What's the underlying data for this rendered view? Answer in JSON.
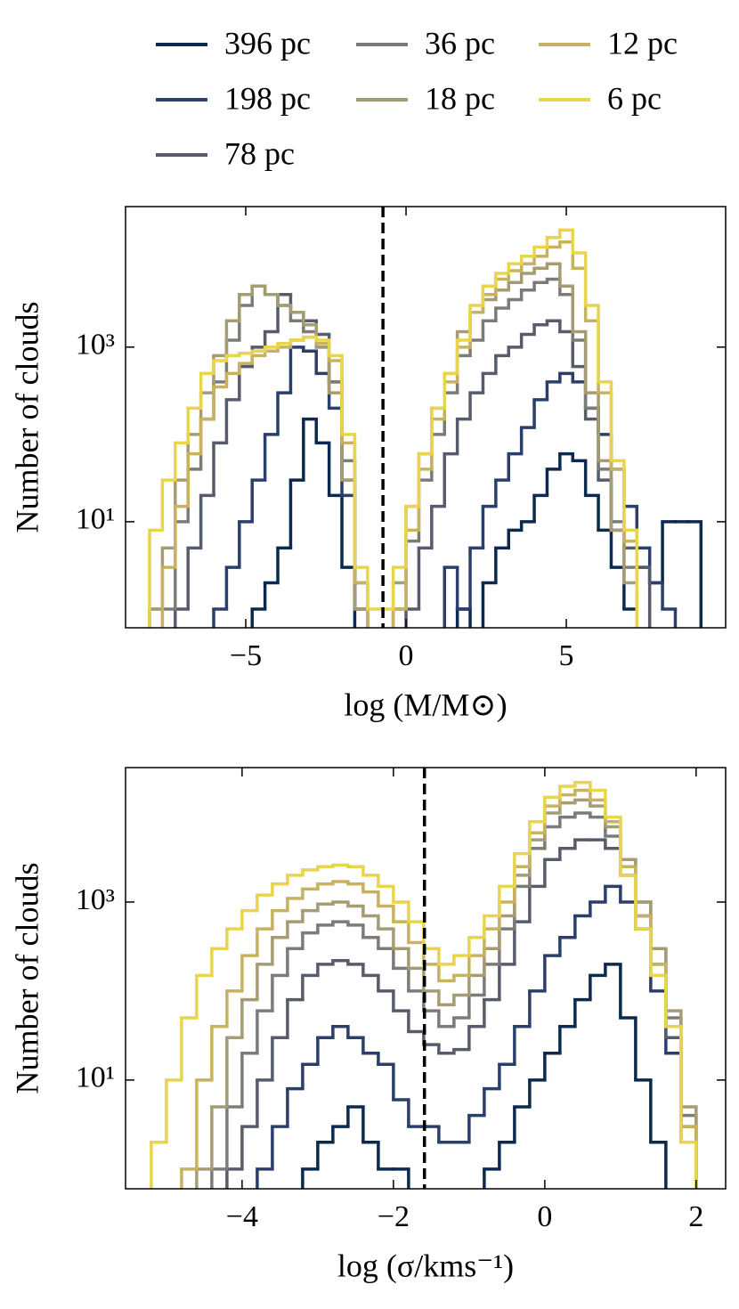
{
  "chart_data": [
    {
      "type": "histogram",
      "xlabel": "log (M/M⊙)",
      "ylabel": "Number of clouds",
      "log_y": true,
      "xlim": [
        -8.75,
        9.97
      ],
      "ylim": [
        0.61,
        40700
      ],
      "xticks": [
        {
          "value": -5,
          "label": "−5"
        },
        0,
        5
      ],
      "yticks": [
        {
          "value": 10,
          "label": "10¹"
        },
        {
          "value": 1000,
          "label": "10³"
        }
      ],
      "vline": -0.72,
      "bins": [
        -8,
        -7.6,
        -7.2,
        -6.8,
        -6.4,
        -6,
        -5.6,
        -5.2,
        -4.8,
        -4.4,
        -4,
        -3.6,
        -3.2,
        -2.8,
        -2.4,
        -2,
        -1.6,
        -1.2,
        -0.8,
        -0.4,
        0,
        0.4,
        0.8,
        1.2,
        1.6,
        2,
        2.4,
        2.8,
        3.2,
        3.6,
        4,
        4.4,
        4.8,
        5.2,
        5.6,
        6,
        6.4,
        6.8,
        7.2,
        7.6,
        8,
        8.4,
        8.8,
        9.2
      ],
      "series": [
        {
          "name": "396 pc",
          "color": "#0c2a50",
          "values": [
            0,
            0,
            0,
            0,
            0,
            0,
            0,
            0,
            1,
            2,
            5,
            30,
            150,
            80,
            20,
            3,
            0,
            0,
            0,
            0,
            0,
            0,
            0,
            0,
            1,
            0,
            2,
            5,
            8,
            10,
            20,
            40,
            60,
            50,
            20,
            8,
            3,
            1,
            3,
            2,
            10,
            10,
            10
          ]
        },
        {
          "name": "198 pc",
          "color": "#2a3f6c",
          "values": [
            0,
            0,
            0,
            0,
            0,
            1,
            3,
            10,
            30,
            100,
            300,
            1000,
            900,
            500,
            200,
            20,
            1,
            0,
            0,
            0,
            0,
            0,
            0,
            3,
            1,
            5,
            15,
            30,
            60,
            120,
            250,
            400,
            500,
            400,
            200,
            100,
            40,
            15,
            5,
            2,
            1,
            0,
            0
          ]
        },
        {
          "name": "78 pc",
          "color": "#575c6d",
          "values": [
            0,
            0,
            1,
            5,
            20,
            80,
            250,
            600,
            1000,
            1500,
            4000,
            2500,
            2000,
            1400,
            400,
            30,
            1,
            0,
            0,
            0,
            1,
            5,
            15,
            60,
            150,
            300,
            500,
            800,
            1000,
            1400,
            1800,
            2000,
            1500,
            600,
            150,
            30,
            8,
            5,
            3,
            0,
            0,
            0,
            0
          ]
        },
        {
          "name": "36 pc",
          "color": "#7c7b78",
          "values": [
            1,
            1,
            10,
            40,
            150,
            400,
            1200,
            3000,
            5000,
            4000,
            3000,
            2000,
            1500,
            1000,
            400,
            50,
            2,
            0,
            0,
            1,
            6,
            30,
            100,
            300,
            800,
            1200,
            2000,
            2800,
            3500,
            4500,
            5500,
            6000,
            4000,
            1200,
            200,
            40,
            10,
            3,
            0,
            0,
            0,
            0,
            0
          ]
        },
        {
          "name": "18 pc",
          "color": "#a59c74",
          "values": [
            1,
            5,
            30,
            100,
            300,
            800,
            2000,
            4000,
            5000,
            4000,
            3000,
            2500,
            1800,
            1000,
            300,
            30,
            1,
            0,
            0,
            2,
            15,
            60,
            200,
            500,
            1500,
            2500,
            3500,
            4500,
            5500,
            7000,
            8000,
            9000,
            5000,
            1500,
            300,
            50,
            8,
            2,
            0,
            0,
            0,
            0,
            0
          ]
        },
        {
          "name": "12 pc",
          "color": "#c9b25f",
          "values": [
            0,
            3,
            15,
            60,
            150,
            350,
            500,
            650,
            800,
            900,
            1000,
            1200,
            1300,
            1100,
            700,
            80,
            2,
            0,
            0,
            1,
            8,
            40,
            150,
            400,
            1000,
            2500,
            4000,
            6000,
            7500,
            9000,
            11000,
            14000,
            16000,
            8000,
            2000,
            300,
            40,
            6,
            0,
            0,
            0,
            0,
            0
          ]
        },
        {
          "name": "6 pc",
          "color": "#e8d44d",
          "values": [
            8,
            30,
            80,
            200,
            500,
            700,
            800,
            850,
            900,
            1000,
            1100,
            1200,
            1300,
            1200,
            800,
            100,
            3,
            1,
            1,
            3,
            15,
            60,
            200,
            500,
            1200,
            3000,
            5000,
            7000,
            9000,
            11000,
            14000,
            18000,
            22000,
            12000,
            3000,
            400,
            50,
            8,
            0,
            0,
            0,
            0,
            0
          ]
        }
      ]
    },
    {
      "type": "histogram",
      "xlabel": "log (σ/kms⁻¹)",
      "ylabel": "Number of clouds",
      "log_y": true,
      "xlim": [
        -5.54,
        2.39
      ],
      "ylim": [
        0.6,
        32400
      ],
      "xticks": [
        {
          "value": -4,
          "label": "−4"
        },
        {
          "value": -2,
          "label": "−2"
        },
        0,
        2
      ],
      "yticks": [
        {
          "value": 10,
          "label": "10¹"
        },
        {
          "value": 1000,
          "label": "10³"
        }
      ],
      "vline": -1.59,
      "bins": [
        -5.2,
        -5,
        -4.8,
        -4.6,
        -4.4,
        -4.2,
        -4,
        -3.8,
        -3.6,
        -3.4,
        -3.2,
        -3,
        -2.8,
        -2.6,
        -2.4,
        -2.2,
        -2,
        -1.8,
        -1.6,
        -1.4,
        -1.2,
        -1,
        -0.8,
        -0.6,
        -0.4,
        -0.2,
        0,
        0.2,
        0.4,
        0.6,
        0.8,
        1,
        1.2,
        1.4,
        1.6,
        1.8,
        2
      ],
      "series": [
        {
          "values": [
            0,
            0,
            0,
            0,
            0,
            0,
            0,
            0,
            0,
            0,
            1,
            2,
            3,
            5,
            2,
            1,
            1,
            0,
            0,
            0,
            0,
            0,
            1,
            2,
            5,
            10,
            20,
            40,
            80,
            150,
            200,
            50,
            10,
            2,
            0,
            0
          ]
        },
        {
          "values": [
            0,
            0,
            0,
            0,
            0,
            0,
            0,
            1,
            3,
            8,
            15,
            30,
            40,
            30,
            20,
            15,
            6,
            3,
            3,
            2,
            2,
            4,
            8,
            15,
            40,
            100,
            250,
            400,
            700,
            1000,
            1500,
            1000,
            500,
            100,
            20,
            2
          ]
        },
        {
          "values": [
            0,
            0,
            0,
            0,
            0,
            1,
            3,
            10,
            30,
            80,
            150,
            200,
            220,
            200,
            150,
            100,
            60,
            35,
            25,
            20,
            22,
            40,
            80,
            200,
            600,
            1500,
            3000,
            4000,
            5000,
            5000,
            4000,
            2000,
            700,
            200,
            30,
            3
          ]
        },
        {
          "values": [
            0,
            0,
            0,
            0,
            1,
            5,
            20,
            60,
            150,
            300,
            450,
            550,
            600,
            550,
            400,
            300,
            180,
            100,
            60,
            40,
            50,
            90,
            200,
            500,
            1500,
            4000,
            7000,
            9000,
            10000,
            9000,
            5500,
            3000,
            1000,
            300,
            50,
            4
          ]
        },
        {
          "values": [
            0,
            0,
            0,
            1,
            5,
            30,
            80,
            200,
            400,
            600,
            800,
            950,
            1000,
            900,
            700,
            500,
            300,
            180,
            100,
            70,
            90,
            150,
            300,
            700,
            2000,
            5000,
            10000,
            13000,
            14000,
            12000,
            7000,
            3000,
            1000,
            300,
            60,
            5
          ]
        },
        {
          "values": [
            0,
            0,
            1,
            10,
            40,
            100,
            250,
            500,
            800,
            1100,
            1400,
            1600,
            1700,
            1600,
            1300,
            900,
            600,
            350,
            200,
            130,
            150,
            250,
            500,
            1000,
            2500,
            6000,
            12000,
            16000,
            18000,
            14000,
            8000,
            2500,
            700,
            200,
            40,
            3
          ]
        },
        {
          "values": [
            2,
            10,
            50,
            150,
            300,
            500,
            800,
            1200,
            1600,
            2000,
            2300,
            2500,
            2600,
            2500,
            2000,
            1500,
            1000,
            600,
            300,
            200,
            250,
            400,
            700,
            1500,
            3500,
            8000,
            15000,
            20000,
            22000,
            18000,
            9000,
            2000,
            500,
            150,
            40,
            2
          ]
        }
      ]
    }
  ]
}
